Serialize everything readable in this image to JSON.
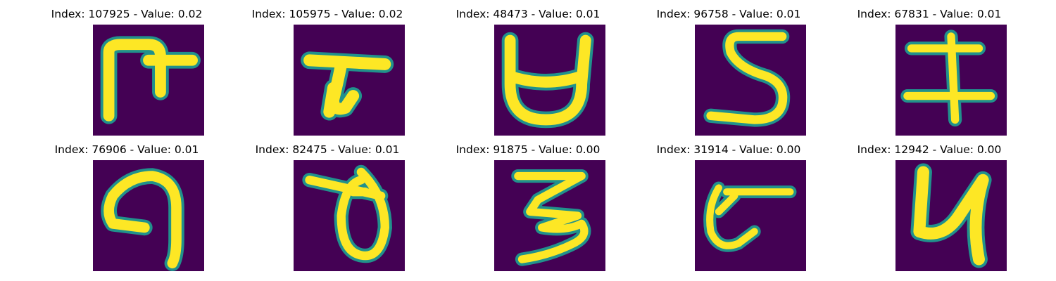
{
  "colors": {
    "background": "#440154",
    "stroke": "#fde725",
    "stroke_edge": "#21918c"
  },
  "panels": [
    {
      "label": "Index: 107925 - Value: 0.02",
      "glyph": "strange-glyph-1"
    },
    {
      "label": "Index: 105975 - Value: 0.02",
      "glyph": "strange-glyph-2"
    },
    {
      "label": "Index: 48473 - Value: 0.01",
      "glyph": "strange-glyph-3"
    },
    {
      "label": "Index: 96758 - Value: 0.01",
      "glyph": "digit-5-like"
    },
    {
      "label": "Index: 67831 - Value: 0.01",
      "glyph": "strange-glyph-5"
    },
    {
      "label": "Index: 76906 - Value: 0.01",
      "glyph": "strange-glyph-6"
    },
    {
      "label": "Index: 82475 - Value: 0.01",
      "glyph": "strange-glyph-7"
    },
    {
      "label": "Index: 91875 - Value: 0.00",
      "glyph": "digit-3-like"
    },
    {
      "label": "Index: 31914 - Value: 0.00",
      "glyph": "strange-glyph-9"
    },
    {
      "label": "Index: 12942 - Value: 0.00",
      "glyph": "digit-4-like"
    }
  ]
}
